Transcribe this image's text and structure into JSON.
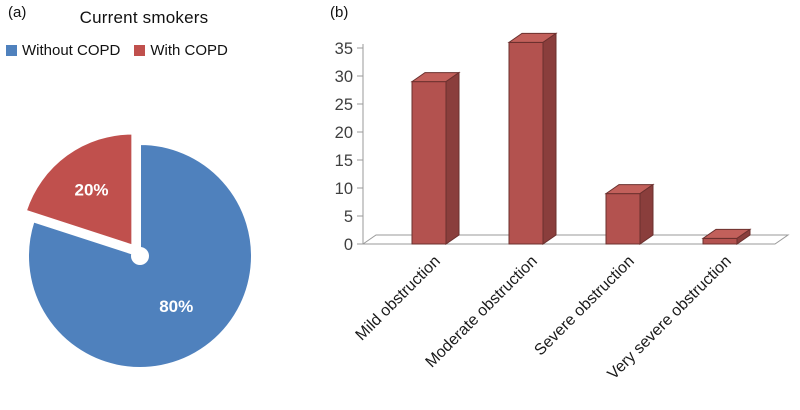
{
  "figure": {
    "panel_a_label": "(a)",
    "panel_b_label": "(b)",
    "background": "#ffffff"
  },
  "chart_data": [
    {
      "type": "pie",
      "panel": "a",
      "title": "Current smokers",
      "series_labels": [
        "Without COPD",
        "With COPD"
      ],
      "values": [
        80,
        20
      ],
      "unit": "%",
      "data_labels": [
        "80%",
        "20%"
      ],
      "colors": [
        "#4f81bd",
        "#c0504d"
      ],
      "data_label_color": "#ffffff",
      "exploded": [
        false,
        true
      ],
      "legend_position": "top"
    },
    {
      "type": "bar",
      "panel": "b",
      "style": "3d",
      "categories": [
        "Mild obstruction",
        "Moderate obstruction",
        "Severe obstruction",
        "Very severe obstruction"
      ],
      "values": [
        29,
        36,
        9,
        1
      ],
      "bar_colors": {
        "front": "#b3524f",
        "top": "#c2605b",
        "side": "#8a3e3c",
        "outline": "#6b302e"
      },
      "axis_color": "#9a9a9a",
      "tick_label_color": "#3f3f3f",
      "category_label_color": "#1a1a1a",
      "ylim": [
        0,
        35
      ],
      "yticks": [
        0,
        5,
        10,
        15,
        20,
        25,
        30,
        35
      ],
      "xlabel": "",
      "ylabel": "",
      "legend": "none",
      "grid": false
    }
  ]
}
